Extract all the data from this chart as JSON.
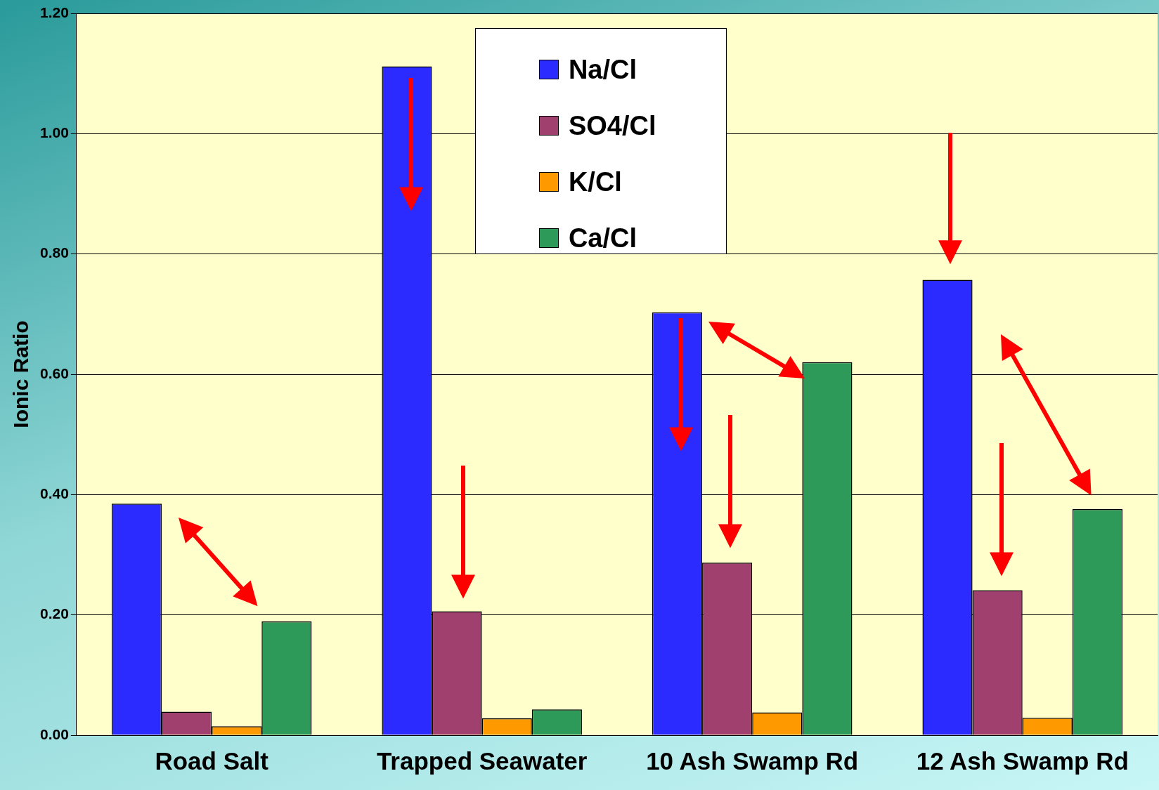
{
  "chart_data": {
    "type": "bar",
    "ylabel": "Ionic Ratio",
    "categories": [
      "Road Salt",
      "Trapped Seawater",
      "10 Ash Swamp Rd",
      "12 Ash Swamp Rd"
    ],
    "series": [
      {
        "name": "Na/Cl",
        "color": "#2b2bff",
        "values": [
          0.385,
          1.112,
          0.703,
          0.757
        ]
      },
      {
        "name": "SO4/Cl",
        "color": "#a0406e",
        "values": [
          0.039,
          0.206,
          0.287,
          0.241
        ]
      },
      {
        "name": "K/Cl",
        "color": "#ff9900",
        "values": [
          0.015,
          0.028,
          0.038,
          0.029
        ]
      },
      {
        "name": "Ca/Cl",
        "color": "#2e9a5a",
        "values": [
          0.189,
          0.043,
          0.62,
          0.376
        ]
      }
    ],
    "ylim": [
      0,
      1.2
    ],
    "yticks": [
      {
        "value": 0,
        "label": "0.00"
      },
      {
        "value": 0.2,
        "label": "0.20"
      },
      {
        "value": 0.4,
        "label": "0.40"
      },
      {
        "value": 0.6,
        "label": "0.60"
      },
      {
        "value": 0.8,
        "label": "0.80"
      },
      {
        "value": 1,
        "label": "1.00"
      },
      {
        "value": 1.2,
        "label": "1.20"
      }
    ],
    "grid": "y",
    "legend": "top"
  }
}
